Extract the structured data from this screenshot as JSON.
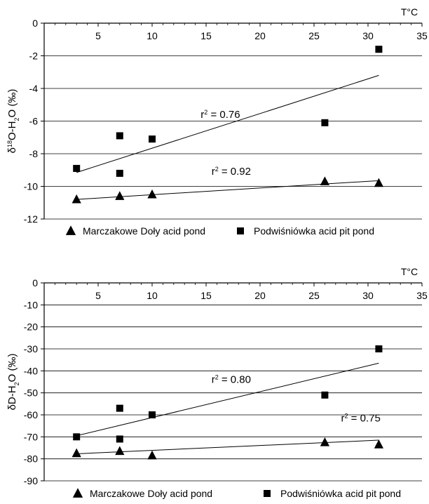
{
  "chart_data": [
    {
      "type": "scatter",
      "title": "",
      "ylabel": "δ18O-H2O (‰)",
      "ylabel_parts": {
        "pre": "δ",
        "sup": "18",
        "post": "O-H",
        "sub": "2",
        "tail": "O (‰)"
      },
      "x_unit_label": "T°C",
      "xlim": [
        0,
        35
      ],
      "ylim": [
        -12,
        0
      ],
      "x_ticks": [
        5,
        10,
        15,
        20,
        25,
        30,
        35
      ],
      "x_tick_labels": [
        "5",
        "10",
        "15",
        "20",
        "25",
        "30",
        "35"
      ],
      "y_ticks": [
        0,
        -2,
        -4,
        -6,
        -8,
        -10,
        -12
      ],
      "y_tick_labels": [
        "0",
        "-2",
        "-4",
        "-6",
        "-8",
        "-10",
        "-12"
      ],
      "grid": "horizontal",
      "legend_position": "bottom",
      "series": [
        {
          "name": "Marczakowe Doły acid pond",
          "marker": "triangle",
          "points": [
            [
              3,
              -10.8
            ],
            [
              7,
              -10.6
            ],
            [
              10,
              -10.5
            ],
            [
              26,
              -9.7
            ],
            [
              31,
              -9.8
            ]
          ],
          "trendline": {
            "x": [
              3,
              31
            ],
            "y": [
              -10.8,
              -9.65
            ]
          }
        },
        {
          "name": "Podwiśniówka acid pit pond",
          "marker": "square",
          "points": [
            [
              3,
              -8.9
            ],
            [
              7,
              -6.9
            ],
            [
              7,
              -9.2
            ],
            [
              10,
              -7.1
            ],
            [
              26,
              -6.1
            ],
            [
              31,
              -1.6
            ]
          ],
          "trendline": {
            "x": [
              3,
              31
            ],
            "y": [
              -9.15,
              -3.2
            ]
          }
        }
      ],
      "annotations": [
        {
          "pre": "r",
          "sup": "2",
          "post": " = 0.76",
          "at": [
            14.5,
            -5.8
          ]
        },
        {
          "pre": "r",
          "sup": "2",
          "post": " = 0.92",
          "at": [
            15.5,
            -9.3
          ]
        }
      ]
    },
    {
      "type": "scatter",
      "title": "",
      "ylabel": "δD-H2O (‰)",
      "ylabel_parts": {
        "pre": "δD-H",
        "sup": "",
        "post": "",
        "sub": "2",
        "tail": "O (‰)"
      },
      "x_unit_label": "T°C",
      "xlim": [
        0,
        35
      ],
      "ylim": [
        -90,
        0
      ],
      "x_ticks": [
        5,
        10,
        15,
        20,
        25,
        30,
        35
      ],
      "x_tick_labels": [
        "5",
        "10",
        "15",
        "20",
        "25",
        "30",
        "35"
      ],
      "y_ticks": [
        0,
        -10,
        -20,
        -30,
        -40,
        -50,
        -60,
        -70,
        -80,
        -90
      ],
      "y_tick_labels": [
        "0",
        "-10",
        "-20",
        "-30",
        "-40",
        "-50",
        "-60",
        "-70",
        "-80",
        "-90"
      ],
      "grid": "horizontal",
      "legend_position": "bottom",
      "series": [
        {
          "name": "Marczakowe Doły acid pond",
          "marker": "triangle",
          "points": [
            [
              3,
              -77.5
            ],
            [
              7,
              -76.5
            ],
            [
              10,
              -78.5
            ],
            [
              26,
              -72.5
            ],
            [
              31,
              -73.5
            ]
          ],
          "trendline": {
            "x": [
              3,
              31
            ],
            "y": [
              -77.7,
              -71.5
            ]
          }
        },
        {
          "name": "Podwiśniówka acid pit pond",
          "marker": "square",
          "points": [
            [
              3,
              -70
            ],
            [
              7,
              -57
            ],
            [
              7,
              -71
            ],
            [
              10,
              -60
            ],
            [
              26,
              -51
            ],
            [
              31,
              -30
            ]
          ],
          "trendline": {
            "x": [
              3,
              31
            ],
            "y": [
              -69.5,
              -36.5
            ]
          }
        }
      ],
      "annotations": [
        {
          "pre": "r",
          "sup": "2",
          "post": " = 0.80",
          "at": [
            15.5,
            -45.5
          ]
        },
        {
          "pre": "r",
          "sup": "2",
          "post": " = 0.75",
          "at": [
            27.5,
            -63
          ]
        }
      ]
    }
  ]
}
